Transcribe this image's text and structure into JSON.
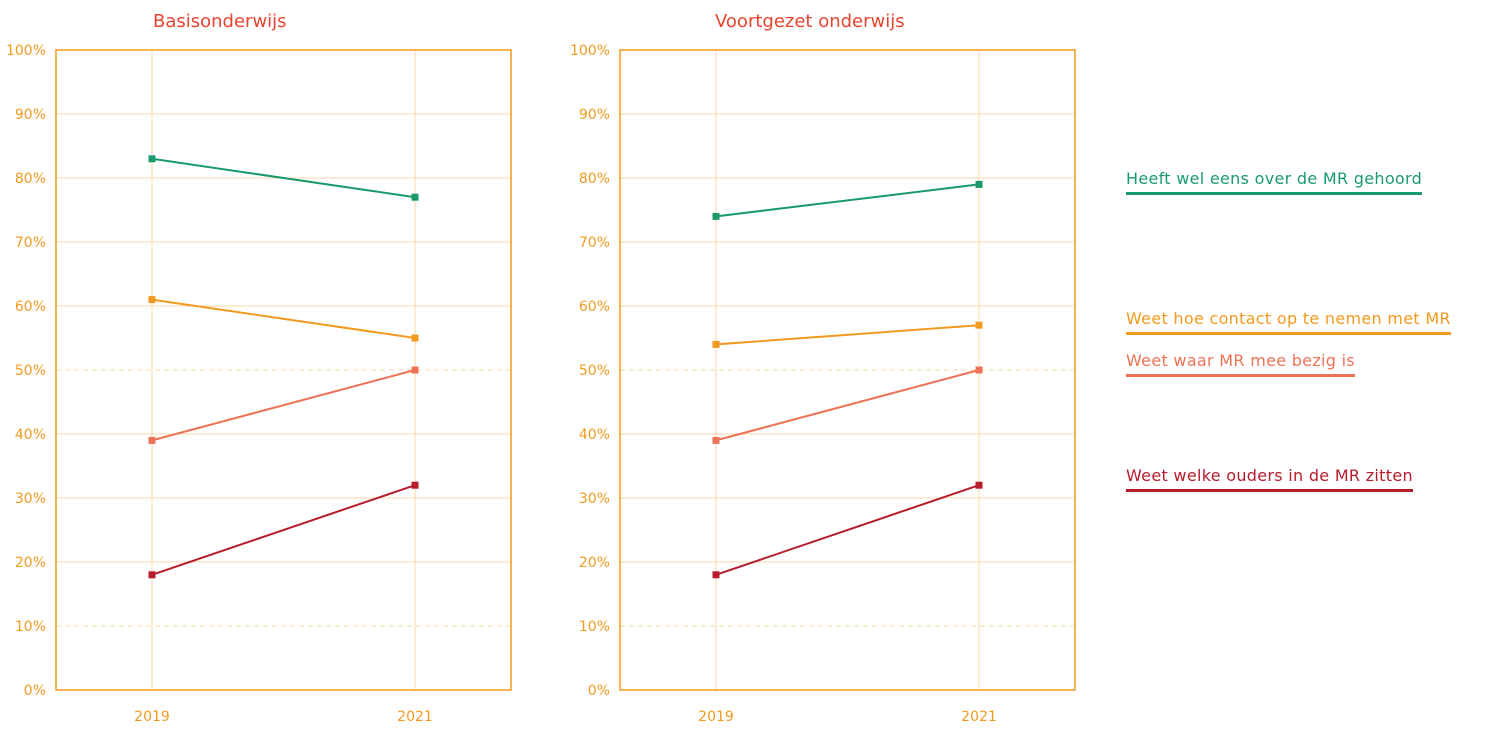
{
  "colors": {
    "axis": "#f29a1f",
    "grid": "#fbd9a8",
    "title": "#e8452f",
    "tick": "#f29a1f"
  },
  "legend": [
    {
      "label": "Heeft wel eens over de MR gehoord",
      "color": "#1a9a6c"
    },
    {
      "label": "Weet hoe contact op te nemen met MR",
      "color": "#f29a1f"
    },
    {
      "label": "Weet waar MR mee bezig is",
      "color": "#ee7256"
    },
    {
      "label": "Weet welke ouders in de MR zitten",
      "color": "#b71c2c"
    }
  ],
  "chart_data": [
    {
      "type": "line",
      "title": "Basisonderwijs",
      "categories": [
        "2019",
        "2021"
      ],
      "ylim": [
        0,
        100
      ],
      "yticks": [
        "0%",
        "10%",
        "20%",
        "30%",
        "40%",
        "50%",
        "60%",
        "70%",
        "80%",
        "90%",
        "100%"
      ],
      "grid": true,
      "series": [
        {
          "name": "Heeft wel eens over de MR gehoord",
          "color": "#1a9a6c",
          "values": [
            83,
            77
          ]
        },
        {
          "name": "Weet hoe contact op te nemen met MR",
          "color": "#f29a1f",
          "values": [
            61,
            55
          ]
        },
        {
          "name": "Weet waar MR mee bezig is",
          "color": "#ee7256",
          "values": [
            39,
            50
          ]
        },
        {
          "name": "Weet welke ouders in de MR zitten",
          "color": "#b71c2c",
          "values": [
            18,
            32
          ]
        }
      ]
    },
    {
      "type": "line",
      "title": "Voortgezet onderwijs",
      "categories": [
        "2019",
        "2021"
      ],
      "ylim": [
        0,
        100
      ],
      "yticks": [
        "0%",
        "10%",
        "20%",
        "30%",
        "40%",
        "50%",
        "60%",
        "70%",
        "80%",
        "90%",
        "100%"
      ],
      "grid": true,
      "series": [
        {
          "name": "Heeft wel eens over de MR gehoord",
          "color": "#1a9a6c",
          "values": [
            74,
            79
          ]
        },
        {
          "name": "Weet hoe contact op te nemen met MR",
          "color": "#f29a1f",
          "values": [
            54,
            57
          ]
        },
        {
          "name": "Weet waar MR mee bezig is",
          "color": "#ee7256",
          "values": [
            39,
            50
          ]
        },
        {
          "name": "Weet welke ouders in de MR zitten",
          "color": "#b71c2c",
          "values": [
            18,
            32
          ]
        }
      ]
    }
  ]
}
